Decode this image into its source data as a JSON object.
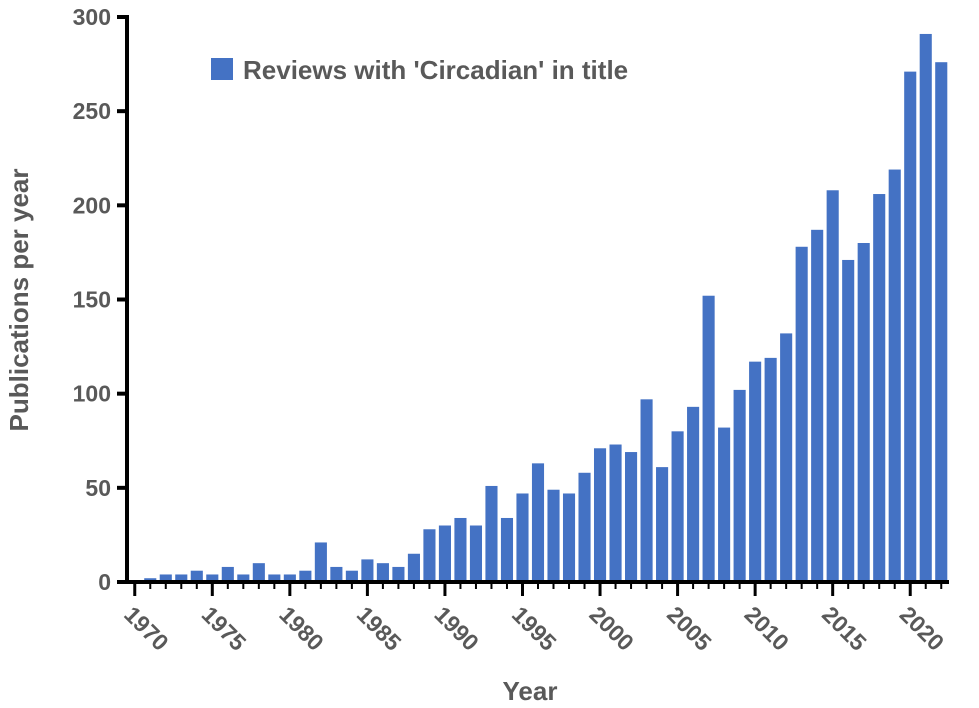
{
  "chart_data": {
    "type": "bar",
    "title": "",
    "xlabel": "Year",
    "ylabel": "Publications per year",
    "ylim": [
      0,
      300
    ],
    "xlim": [
      1969.5,
      2022.5
    ],
    "y_ticks": [
      "0",
      "50",
      "100",
      "150",
      "200",
      "250",
      "300"
    ],
    "x_ticks": [
      "1970",
      "1975",
      "1980",
      "1985",
      "1990",
      "1995",
      "2000",
      "2005",
      "2010",
      "2015",
      "2020"
    ],
    "grid": false,
    "legend_position": "top-left",
    "series": [
      {
        "name": "Reviews with 'Circadian' in title",
        "color": "#4472C4",
        "x": [
          1971,
          1972,
          1973,
          1974,
          1975,
          1976,
          1977,
          1978,
          1979,
          1980,
          1981,
          1982,
          1983,
          1984,
          1985,
          1986,
          1987,
          1988,
          1989,
          1990,
          1991,
          1992,
          1993,
          1994,
          1995,
          1996,
          1997,
          1998,
          1999,
          2000,
          2001,
          2002,
          2003,
          2004,
          2005,
          2006,
          2007,
          2008,
          2009,
          2010,
          2011,
          2012,
          2013,
          2014,
          2015,
          2016,
          2017,
          2018,
          2019,
          2020,
          2021,
          2022
        ],
        "values": [
          2,
          4,
          4,
          6,
          4,
          8,
          4,
          10,
          4,
          4,
          6,
          21,
          8,
          6,
          12,
          10,
          8,
          15,
          28,
          30,
          34,
          30,
          51,
          34,
          47,
          63,
          49,
          47,
          58,
          71,
          73,
          69,
          97,
          61,
          80,
          93,
          152,
          82,
          102,
          117,
          119,
          132,
          178,
          187,
          208,
          171,
          180,
          206,
          219,
          271,
          291,
          276
        ]
      }
    ]
  }
}
